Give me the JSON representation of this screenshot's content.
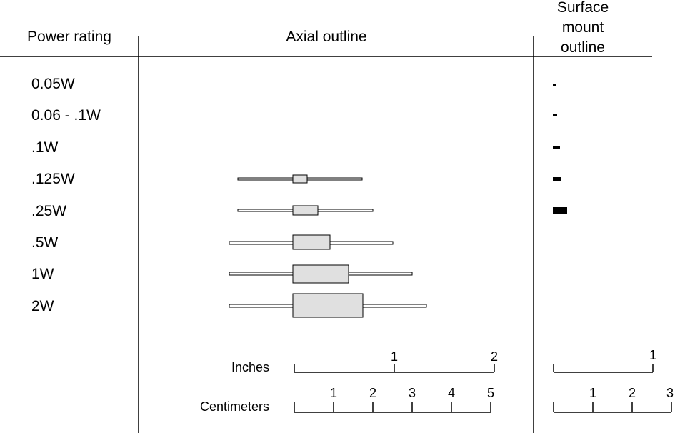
{
  "headers": {
    "power_rating": "Power rating",
    "axial_outline": "Axial outline",
    "smd_outline": [
      "Surface",
      "mount",
      "outline"
    ]
  },
  "rows": [
    {
      "label": "0.05W",
      "axial": null,
      "smd": true
    },
    {
      "label": "0.06 - .1W",
      "axial": null,
      "smd": true
    },
    {
      "label": ".1W",
      "axial": null,
      "smd": true
    },
    {
      "label": ".125W",
      "axial": true,
      "smd": true
    },
    {
      "label": ".25W",
      "axial": true,
      "smd": true
    },
    {
      "label": ".5W",
      "axial": true,
      "smd": null
    },
    {
      "label": "1W",
      "axial": true,
      "smd": null
    },
    {
      "label": "2W",
      "axial": true,
      "smd": null
    }
  ],
  "scales": {
    "inches_label": "Inches",
    "inches_ticks": [
      "1",
      "2"
    ],
    "centimeters_label": "Centimeters",
    "centimeters_ticks": [
      "1",
      "2",
      "3",
      "4",
      "5"
    ],
    "smd_inches_ticks": [
      "1"
    ],
    "smd_cm_ticks": [
      "1",
      "2",
      "3"
    ]
  },
  "colors": {
    "body_fill": "#e0e0e0",
    "smd_fill": "#000000",
    "line": "#000000"
  }
}
